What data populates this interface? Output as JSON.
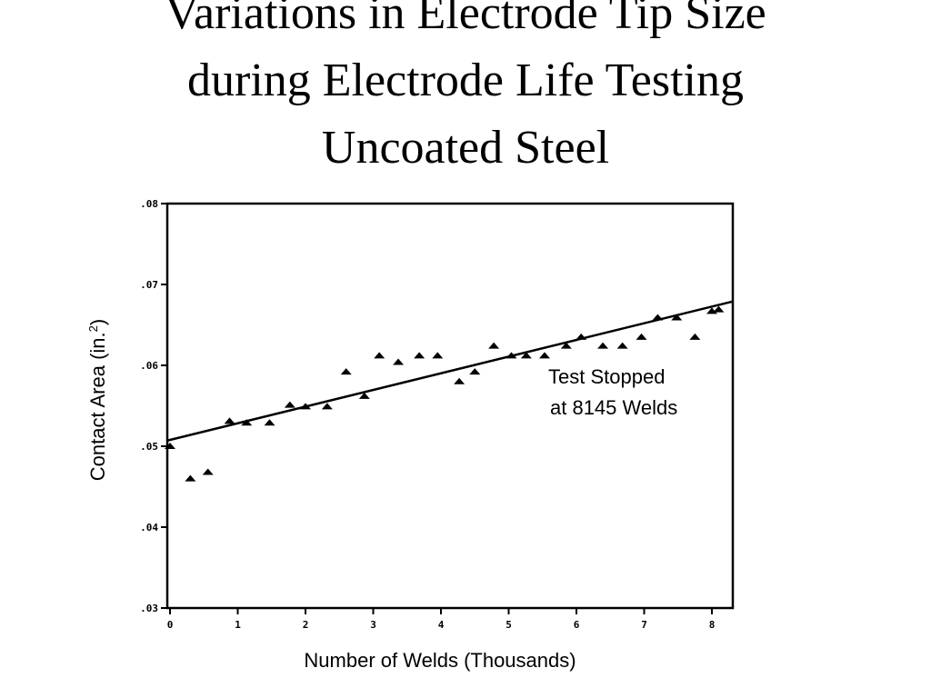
{
  "slide": {
    "title_lines": [
      "Variations in Electrode Tip Size",
      "during Electrode Life Testing",
      "Uncoated Steel"
    ]
  },
  "chart_data": {
    "type": "scatter",
    "title": "Variations in Electrode Tip Size during Electrode Life Testing Uncoated Steel",
    "xlabel": "Number of Welds (Thousands)",
    "ylabel_text": "Contact Area (in.",
    "ylabel_sup": "2",
    "ylabel_close": ")",
    "xlim": [
      0,
      8.3
    ],
    "ylim": [
      0.03,
      0.08
    ],
    "x_ticks": [
      0,
      1,
      2,
      3,
      4,
      5,
      6,
      7,
      8
    ],
    "x_tick_labels": [
      "0",
      "1",
      "2",
      "3",
      "4",
      "5",
      "6",
      "7",
      "8"
    ],
    "y_ticks": [
      0.03,
      0.04,
      0.05,
      0.06,
      0.07,
      0.08
    ],
    "y_tick_labels": [
      ".03",
      ".04",
      ".05",
      ".06",
      ".07",
      ".08"
    ],
    "grid": false,
    "series": [
      {
        "marker": "triangle",
        "x": [
          0.0,
          0.3,
          0.56,
          0.88,
          1.13,
          1.47,
          1.77,
          2.0,
          2.32,
          2.6,
          2.87,
          3.09,
          3.37,
          3.68,
          3.95,
          4.27,
          4.5,
          4.78,
          5.04,
          5.26,
          5.53,
          5.85,
          6.07,
          6.39,
          6.68,
          6.96,
          7.2,
          7.48,
          7.75,
          8.0,
          8.1
        ],
        "y": [
          0.05,
          0.046,
          0.0468,
          0.0531,
          0.0529,
          0.0529,
          0.0551,
          0.0549,
          0.0549,
          0.0592,
          0.0562,
          0.0612,
          0.0604,
          0.0612,
          0.0612,
          0.058,
          0.0592,
          0.0624,
          0.0612,
          0.0612,
          0.0612,
          0.0624,
          0.0635,
          0.0624,
          0.0624,
          0.0635,
          0.0659,
          0.0659,
          0.0635,
          0.0667,
          0.0669
        ]
      }
    ],
    "fit_line": {
      "x": [
        0,
        8.3
      ],
      "y": [
        0.0507,
        0.0679
      ]
    },
    "annotation_lines": [
      "Test Stopped",
      "at 8145 Welds"
    ],
    "colors": {
      "marks": "#000000",
      "background": "#ffffff"
    }
  }
}
